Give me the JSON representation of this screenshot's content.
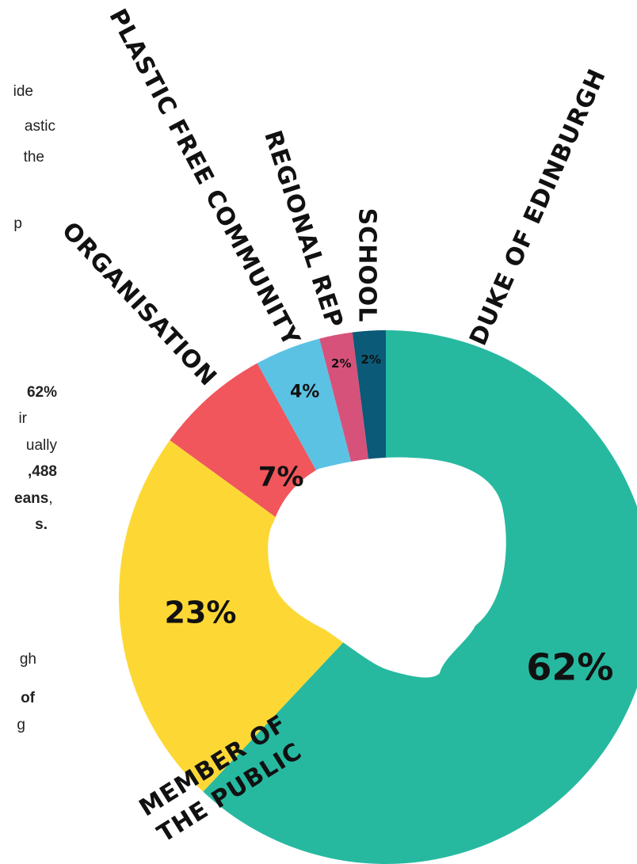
{
  "left_text": {
    "lines": [
      {
        "text": "ide",
        "bold": false
      },
      {
        "text": "astic",
        "bold": false
      },
      {
        "text": "the",
        "bold": false
      },
      {
        "text": "p",
        "bold": false
      },
      {
        "text": "62%",
        "bold": true
      },
      {
        "text": "ir",
        "bold": false
      },
      {
        "text": "ually",
        "bold": false
      },
      {
        "text": ",488",
        "bold": true
      },
      {
        "text": "eans",
        "bold": true
      },
      {
        "text": "s.",
        "bold": true
      },
      {
        "text": "gh",
        "bold": false
      },
      {
        "text": "of",
        "bold": true
      },
      {
        "text": "g",
        "bold": false
      }
    ],
    "comma_after_eans": ","
  },
  "chart_data": {
    "type": "pie",
    "style": "donut",
    "categories": [
      "Duke of Edinburgh",
      "Member of the Public",
      "Organisation",
      "Plastic Free Community",
      "Regional Rep",
      "School"
    ],
    "values": [
      62,
      23,
      7,
      4,
      2,
      2
    ],
    "value_labels": [
      "62%",
      "23%",
      "7%",
      "4%",
      "2%",
      "2%"
    ],
    "category_labels": [
      [
        "Duke of Edinburgh"
      ],
      [
        "Member of",
        "the Public"
      ],
      [
        "Organisation"
      ],
      [
        "Plastic Free Community"
      ],
      [
        "Regional Rep"
      ],
      [
        "School"
      ]
    ],
    "colors": [
      "#26b9a0",
      "#fdd835",
      "#f0565c",
      "#5bc2e4",
      "#d6527a",
      "#0a5a78"
    ],
    "start_angle_deg": 0,
    "direction": "clockwise"
  }
}
